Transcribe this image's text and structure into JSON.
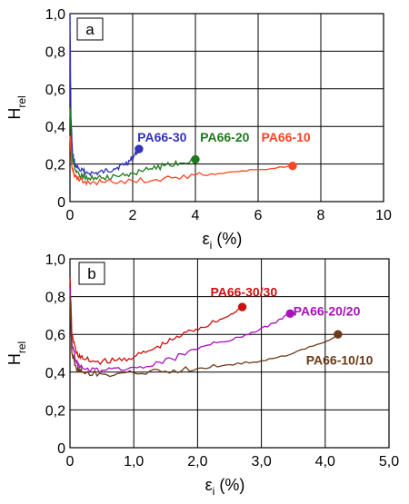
{
  "chart_data": [
    {
      "type": "line",
      "panel_label": "a",
      "ylabel": "H",
      "ylabel_sub": "rel",
      "xlabel": "ε",
      "xlabel_sub": "i",
      "xlabel_unit": "(%)",
      "xlim": [
        0,
        10
      ],
      "ylim": [
        0,
        1.0
      ],
      "x_ticks": [
        0,
        2,
        4,
        6,
        8,
        10
      ],
      "x_tick_labels": [
        "0",
        "2",
        "4",
        "6",
        "8",
        "10"
      ],
      "y_ticks": [
        0,
        0.2,
        0.4,
        0.6,
        0.8,
        1.0
      ],
      "y_tick_labels": [
        "0",
        "0,2",
        "0,4",
        "0,6",
        "0,8",
        "1,0"
      ],
      "grid": true,
      "series": [
        {
          "name": "PA66-30",
          "color": "#3333bb",
          "x": [
            0,
            0.03,
            0.08,
            0.15,
            0.3,
            0.5,
            0.8,
            1.1,
            1.4,
            1.7,
            1.9,
            2.05,
            2.2
          ],
          "y": [
            1.0,
            0.45,
            0.26,
            0.2,
            0.17,
            0.155,
            0.15,
            0.16,
            0.175,
            0.195,
            0.215,
            0.245,
            0.28
          ],
          "end_marker": true
        },
        {
          "name": "PA66-20",
          "color": "#1f7a1f",
          "x": [
            0,
            0.05,
            0.15,
            0.3,
            0.6,
            1.0,
            1.5,
            2.0,
            2.5,
            3.0,
            3.5,
            4.0
          ],
          "y": [
            0.5,
            0.25,
            0.17,
            0.14,
            0.125,
            0.125,
            0.135,
            0.15,
            0.17,
            0.19,
            0.205,
            0.225
          ],
          "end_marker": true
        },
        {
          "name": "PA66-10",
          "color": "#ff4422",
          "x": [
            0,
            0.05,
            0.15,
            0.3,
            0.6,
            1.0,
            2.0,
            3.0,
            4.0,
            5.0,
            6.0,
            7.1
          ],
          "y": [
            0.35,
            0.2,
            0.14,
            0.11,
            0.105,
            0.105,
            0.11,
            0.125,
            0.14,
            0.155,
            0.17,
            0.19
          ],
          "end_marker": true
        }
      ],
      "annotations": [
        {
          "text": "PA66-30",
          "color": "#3333bb",
          "x": 2.15,
          "y": 0.32
        },
        {
          "text": "PA66-20",
          "color": "#1f7a1f",
          "x": 4.15,
          "y": 0.32
        },
        {
          "text": "PA66-10",
          "color": "#ff4422",
          "x": 6.1,
          "y": 0.32
        }
      ]
    },
    {
      "type": "line",
      "panel_label": "b",
      "ylabel": "H",
      "ylabel_sub": "rel",
      "xlabel": "ε",
      "xlabel_sub": "i",
      "xlabel_unit": "(%)",
      "xlim": [
        0,
        5.0
      ],
      "ylim": [
        0,
        1.0
      ],
      "x_ticks": [
        0,
        1.0,
        2.0,
        3.0,
        4.0,
        5.0
      ],
      "x_tick_labels": [
        "0",
        "1,0",
        "2,0",
        "3,0",
        "4,0",
        "5,0"
      ],
      "y_ticks": [
        0,
        0.2,
        0.4,
        0.6,
        0.8,
        1.0
      ],
      "y_tick_labels": [
        "0",
        "0,2",
        "0,4",
        "0,6",
        "0,8",
        "1,0"
      ],
      "grid": true,
      "series": [
        {
          "name": "PA66-30/30",
          "color": "#cc1111",
          "x": [
            0,
            0.03,
            0.1,
            0.2,
            0.4,
            0.7,
            1.0,
            1.3,
            1.6,
            1.9,
            2.2,
            2.5,
            2.7
          ],
          "y": [
            0.9,
            0.6,
            0.5,
            0.47,
            0.455,
            0.46,
            0.48,
            0.52,
            0.57,
            0.62,
            0.655,
            0.7,
            0.745
          ],
          "end_marker": true
        },
        {
          "name": "PA66-20/20",
          "color": "#aa11bb",
          "x": [
            0,
            0.03,
            0.1,
            0.2,
            0.5,
            0.8,
            1.2,
            1.6,
            2.0,
            2.4,
            2.8,
            3.2,
            3.45
          ],
          "y": [
            0.85,
            0.55,
            0.45,
            0.42,
            0.41,
            0.41,
            0.43,
            0.47,
            0.52,
            0.56,
            0.6,
            0.66,
            0.71
          ],
          "end_marker": true
        },
        {
          "name": "PA66-10/10",
          "color": "#6b3a1a",
          "x": [
            0,
            0.03,
            0.1,
            0.2,
            0.5,
            1.0,
            1.5,
            2.0,
            2.5,
            3.0,
            3.5,
            4.0,
            4.2
          ],
          "y": [
            0.8,
            0.5,
            0.42,
            0.4,
            0.39,
            0.395,
            0.405,
            0.42,
            0.44,
            0.46,
            0.5,
            0.56,
            0.6
          ],
          "end_marker": true
        }
      ],
      "annotations": [
        {
          "text": "PA66-30/30",
          "color": "#cc1111",
          "x": 2.2,
          "y": 0.8
        },
        {
          "text": "PA66-20/20",
          "color": "#aa11bb",
          "x": 3.5,
          "y": 0.7
        },
        {
          "text": "PA66-10/10",
          "color": "#6b3a1a",
          "x": 3.7,
          "y": 0.44
        }
      ]
    }
  ]
}
